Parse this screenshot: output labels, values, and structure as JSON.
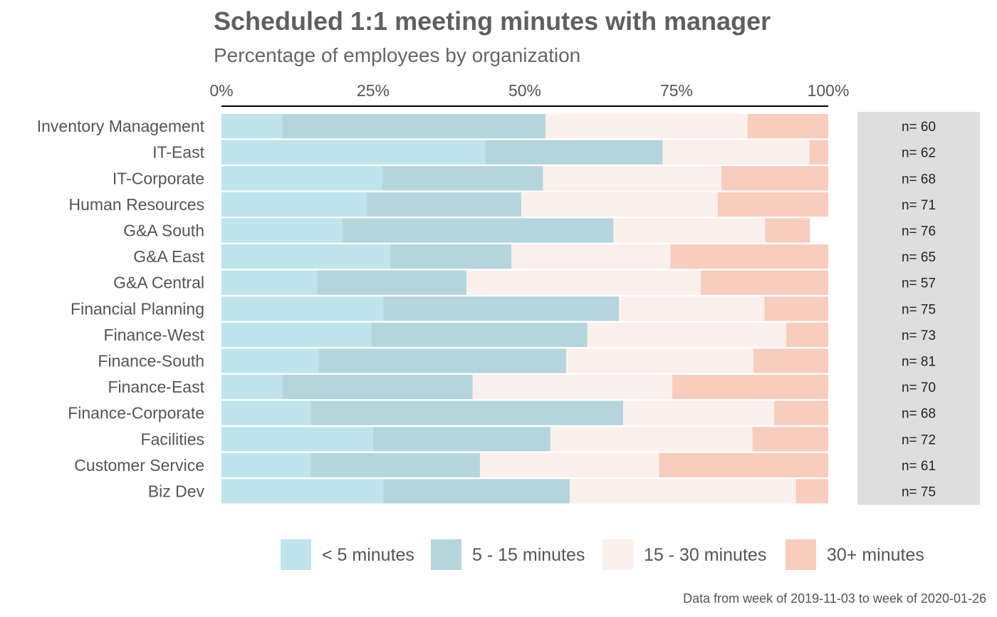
{
  "chart_data": {
    "type": "bar",
    "orientation": "horizontal",
    "stacked": true,
    "percent": true,
    "title": "Scheduled 1:1 meeting minutes with manager",
    "subtitle": "Percentage of employees by organization",
    "caption": "Data from week of 2019-11-03 to week of 2020-01-26",
    "xlim": [
      0,
      100
    ],
    "x_ticks": [
      {
        "value": 0,
        "label": "0%"
      },
      {
        "value": 25,
        "label": "25%"
      },
      {
        "value": 50,
        "label": "50%"
      },
      {
        "value": 75,
        "label": "75%"
      },
      {
        "value": 100,
        "label": "100%"
      }
    ],
    "legend_position": "bottom",
    "categories": [
      "Inventory Management",
      "IT-East",
      "IT-Corporate",
      "Human Resources",
      "G&A South",
      "G&A East",
      "G&A Central",
      "Financial Planning",
      "Finance-West",
      "Finance-South",
      "Finance-East",
      "Finance-Corporate",
      "Facilities",
      "Customer Service",
      "Biz Dev"
    ],
    "n_labels": [
      "n= 60",
      "n= 62",
      "n= 68",
      "n= 71",
      "n= 76",
      "n= 65",
      "n= 57",
      "n= 75",
      "n= 73",
      "n= 81",
      "n= 70",
      "n= 68",
      "n= 72",
      "n= 61",
      "n= 75"
    ],
    "series": [
      {
        "name": "< 5 minutes",
        "color": "#bfe4ec",
        "values": [
          10.0,
          43.5,
          26.5,
          24.0,
          19.9,
          27.8,
          15.8,
          26.7,
          24.7,
          16.0,
          10.0,
          14.7,
          25.0,
          14.7,
          26.7
        ]
      },
      {
        "name": "5 - 15 minutes",
        "color": "#b5d5dc",
        "values": [
          43.4,
          29.2,
          26.5,
          25.4,
          44.7,
          20.0,
          24.6,
          38.8,
          35.6,
          40.8,
          31.4,
          51.5,
          29.2,
          27.9,
          30.7
        ]
      },
      {
        "name": "15 - 30 minutes",
        "color": "#fbf0ec",
        "values": [
          33.3,
          24.2,
          29.4,
          32.4,
          25.0,
          26.2,
          38.6,
          24.0,
          32.8,
          30.9,
          32.9,
          24.9,
          33.3,
          29.5,
          37.3
        ]
      },
      {
        "name": "30+ minutes",
        "color": "#f8cdbe",
        "values": [
          13.3,
          3.1,
          17.6,
          18.2,
          7.4,
          26.0,
          21.0,
          10.5,
          6.9,
          12.3,
          25.7,
          8.9,
          12.5,
          27.9,
          5.3
        ]
      }
    ]
  }
}
